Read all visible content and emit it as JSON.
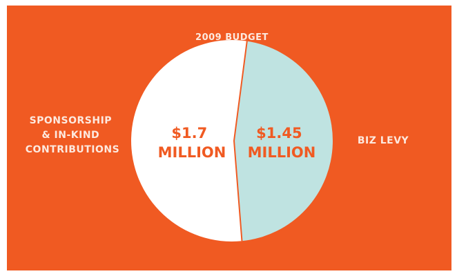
{
  "colors": {
    "background": "#f05a22",
    "slice_sponsorship": "#ffffff",
    "slice_biz_levy": "#bfe3e1",
    "value_text": "#f05a22",
    "label_text": "#fde9df"
  },
  "chart_data": {
    "type": "pie",
    "title": "2009 BUDGET",
    "slices": [
      {
        "label_lines": [
          "SPONSORSHIP",
          "& IN-KIND",
          "CONTRIBUTIONS"
        ],
        "value": 1.7,
        "value_text_lines": [
          "$1.7",
          "MILLION"
        ]
      },
      {
        "label_lines": [
          "BIZ LEVY"
        ],
        "value": 1.45,
        "value_text_lines": [
          "$1.45",
          "MILLION"
        ]
      }
    ],
    "unit": "million dollars"
  }
}
